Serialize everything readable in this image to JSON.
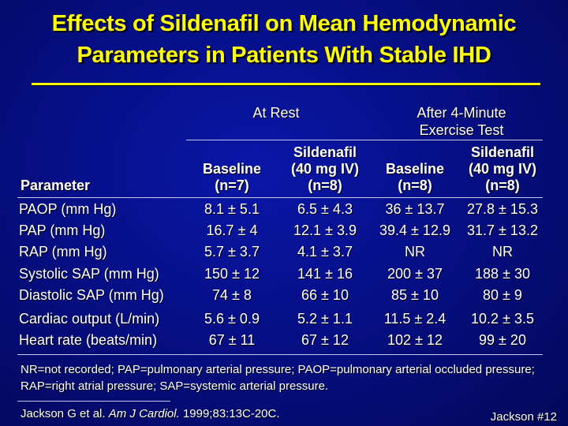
{
  "title": {
    "line1": "Effects of Sildenafil on Mean Hemodynamic",
    "line2": "Parameters in Patients With Stable IHD"
  },
  "table": {
    "groups": [
      {
        "label_line1": "At Rest",
        "label_line2": ""
      },
      {
        "label_line1": "After 4-Minute",
        "label_line2": "Exercise Test"
      }
    ],
    "parameter_header": "Parameter",
    "columns": [
      {
        "line1": "",
        "line2": "Baseline",
        "line3": "(n=7)"
      },
      {
        "line1": "Sildenafil",
        "line2": "(40 mg IV)",
        "line3": "(n=8)"
      },
      {
        "line1": "",
        "line2": "Baseline",
        "line3": "(n=8)"
      },
      {
        "line1": "Sildenafil",
        "line2": "(40 mg IV)",
        "line3": "(n=8)"
      }
    ],
    "rows": [
      {
        "parameter": "PAOP (mm Hg)",
        "values": [
          "8.1 ± 5.1",
          "6.5 ± 4.3",
          "36 ± 13.7",
          "27.8 ± 15.3"
        ]
      },
      {
        "parameter": "PAP (mm Hg)",
        "values": [
          "16.7 ± 4",
          "12.1 ± 3.9",
          "39.4 ± 12.9",
          "31.7 ± 13.2"
        ]
      },
      {
        "parameter": "RAP (mm Hg)",
        "values": [
          "5.7 ± 3.7",
          "4.1 ± 3.7",
          "NR",
          "NR"
        ]
      },
      {
        "parameter": "Systolic SAP (mm Hg)",
        "values": [
          "150 ± 12",
          "141 ± 16",
          "200 ± 37",
          "188 ± 30"
        ]
      },
      {
        "parameter": "Diastolic SAP (mm Hg)",
        "values": [
          "74 ± 8",
          "66 ± 10",
          "85 ± 10",
          "80 ± 9"
        ]
      },
      {
        "parameter": "Cardiac output (L/min)",
        "values": [
          "5.6 ± 0.9",
          "5.2 ± 1.1",
          "11.5 ± 2.4",
          "10.2 ± 3.5"
        ]
      },
      {
        "parameter": "Heart rate (beats/min)",
        "values": [
          "67 ± 11",
          "67 ± 12",
          "102 ± 12",
          "99 ± 20"
        ]
      }
    ]
  },
  "footnote": "NR=not recorded; PAP=pulmonary arterial pressure; PAOP=pulmonary arterial occluded pressure; RAP=right atrial pressure; SAP=systemic arterial pressure.",
  "citation": {
    "authors": "Jackson G et al.",
    "journal": "Am J Cardiol.",
    "details": "1999;83:13C-20C."
  },
  "slide_id": "Jackson #12",
  "colors": {
    "background": "#060f86",
    "title": "#ffff00",
    "text": "#ffffff",
    "rule": "#c8c8e8"
  }
}
